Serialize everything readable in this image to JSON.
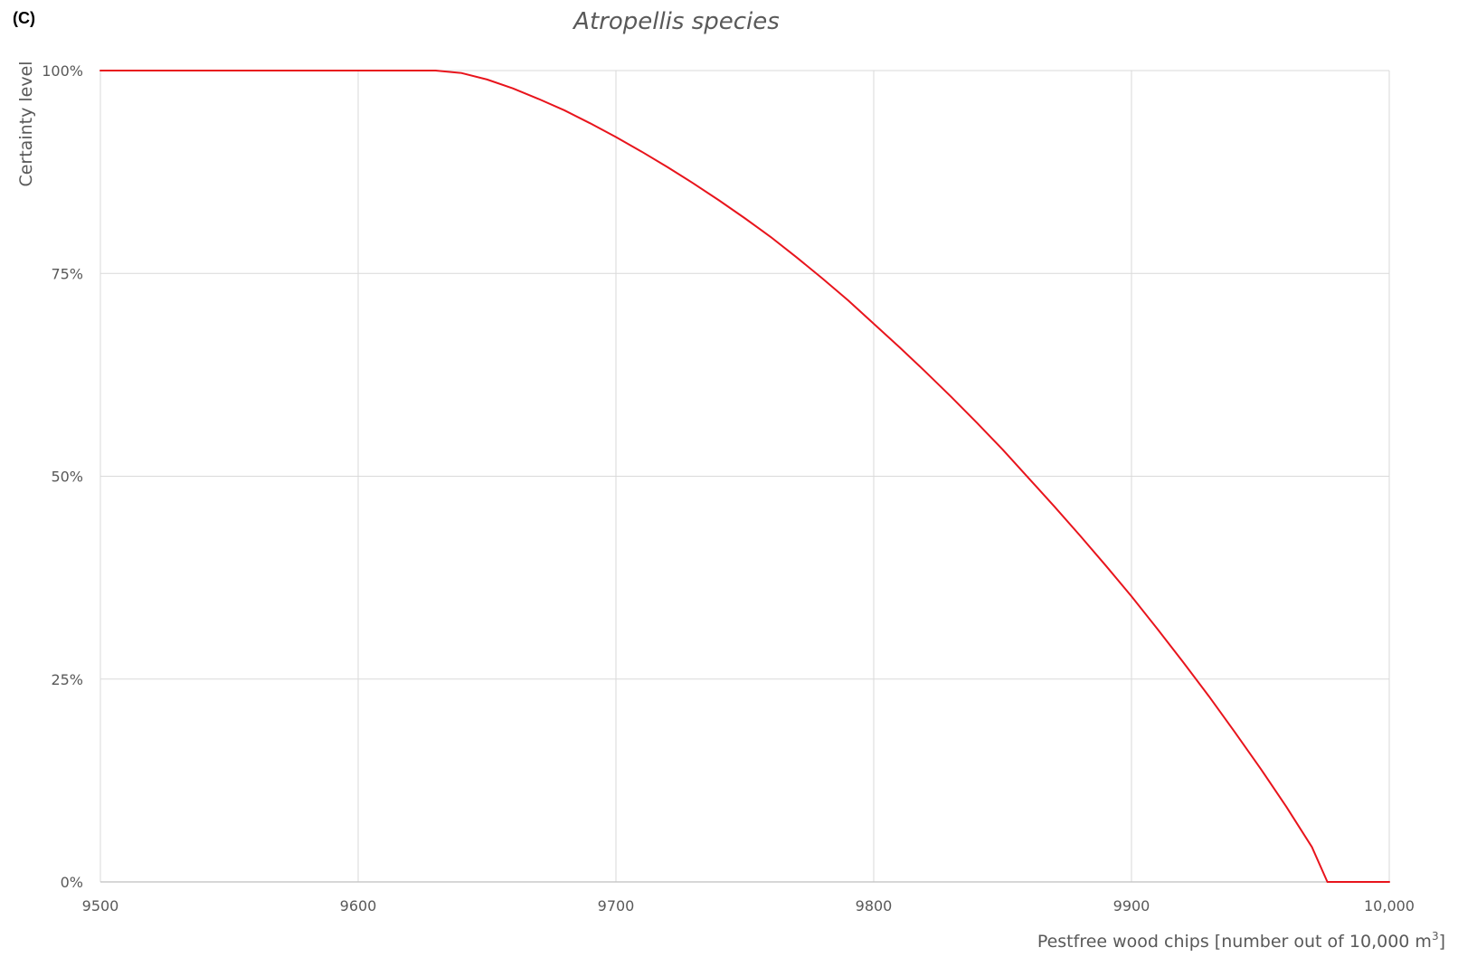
{
  "panel_label": "(C)",
  "colors": {
    "series": "#e8141c",
    "grid": "#d9d9d9",
    "text": "#595959"
  },
  "chart_data": {
    "type": "line",
    "title": "Atropellis species",
    "xlabel_main": "Pestfree wood chips [number out of 10,000 m",
    "xlabel_sup": "3",
    "xlabel_end": "]",
    "ylabel": "Certainty level",
    "xlim": [
      9500,
      10000
    ],
    "ylim": [
      0,
      1
    ],
    "x_ticks": [
      9500,
      9600,
      9700,
      9800,
      9900,
      10000
    ],
    "x_tick_labels": [
      "9500",
      "9600",
      "9700",
      "9800",
      "9900",
      "10,000"
    ],
    "y_ticks": [
      0,
      0.25,
      0.5,
      0.75,
      1
    ],
    "y_tick_labels": [
      "0%",
      "25%",
      "50%",
      "75%",
      "100%"
    ],
    "grid": true,
    "series": [
      {
        "values": [
          [
            9500,
            1.0
          ],
          [
            9630,
            1.0
          ],
          [
            9640,
            0.997
          ],
          [
            9650,
            0.989
          ],
          [
            9660,
            0.978
          ],
          [
            9670,
            0.965
          ],
          [
            9680,
            0.951
          ],
          [
            9690,
            0.935
          ],
          [
            9700,
            0.918
          ],
          [
            9710,
            0.9
          ],
          [
            9720,
            0.881
          ],
          [
            9730,
            0.861
          ],
          [
            9740,
            0.84
          ],
          [
            9750,
            0.818
          ],
          [
            9760,
            0.795
          ],
          [
            9770,
            0.77
          ],
          [
            9780,
            0.744
          ],
          [
            9790,
            0.717
          ],
          [
            9800,
            0.688
          ],
          [
            9810,
            0.659
          ],
          [
            9820,
            0.629
          ],
          [
            9830,
            0.598
          ],
          [
            9840,
            0.566
          ],
          [
            9850,
            0.533
          ],
          [
            9860,
            0.498
          ],
          [
            9870,
            0.463
          ],
          [
            9880,
            0.427
          ],
          [
            9890,
            0.39
          ],
          [
            9900,
            0.352
          ],
          [
            9910,
            0.312
          ],
          [
            9920,
            0.271
          ],
          [
            9930,
            0.229
          ],
          [
            9940,
            0.185
          ],
          [
            9950,
            0.14
          ],
          [
            9960,
            0.093
          ],
          [
            9970,
            0.043
          ],
          [
            9976,
            0.0
          ],
          [
            10000,
            0.0
          ]
        ]
      }
    ]
  }
}
